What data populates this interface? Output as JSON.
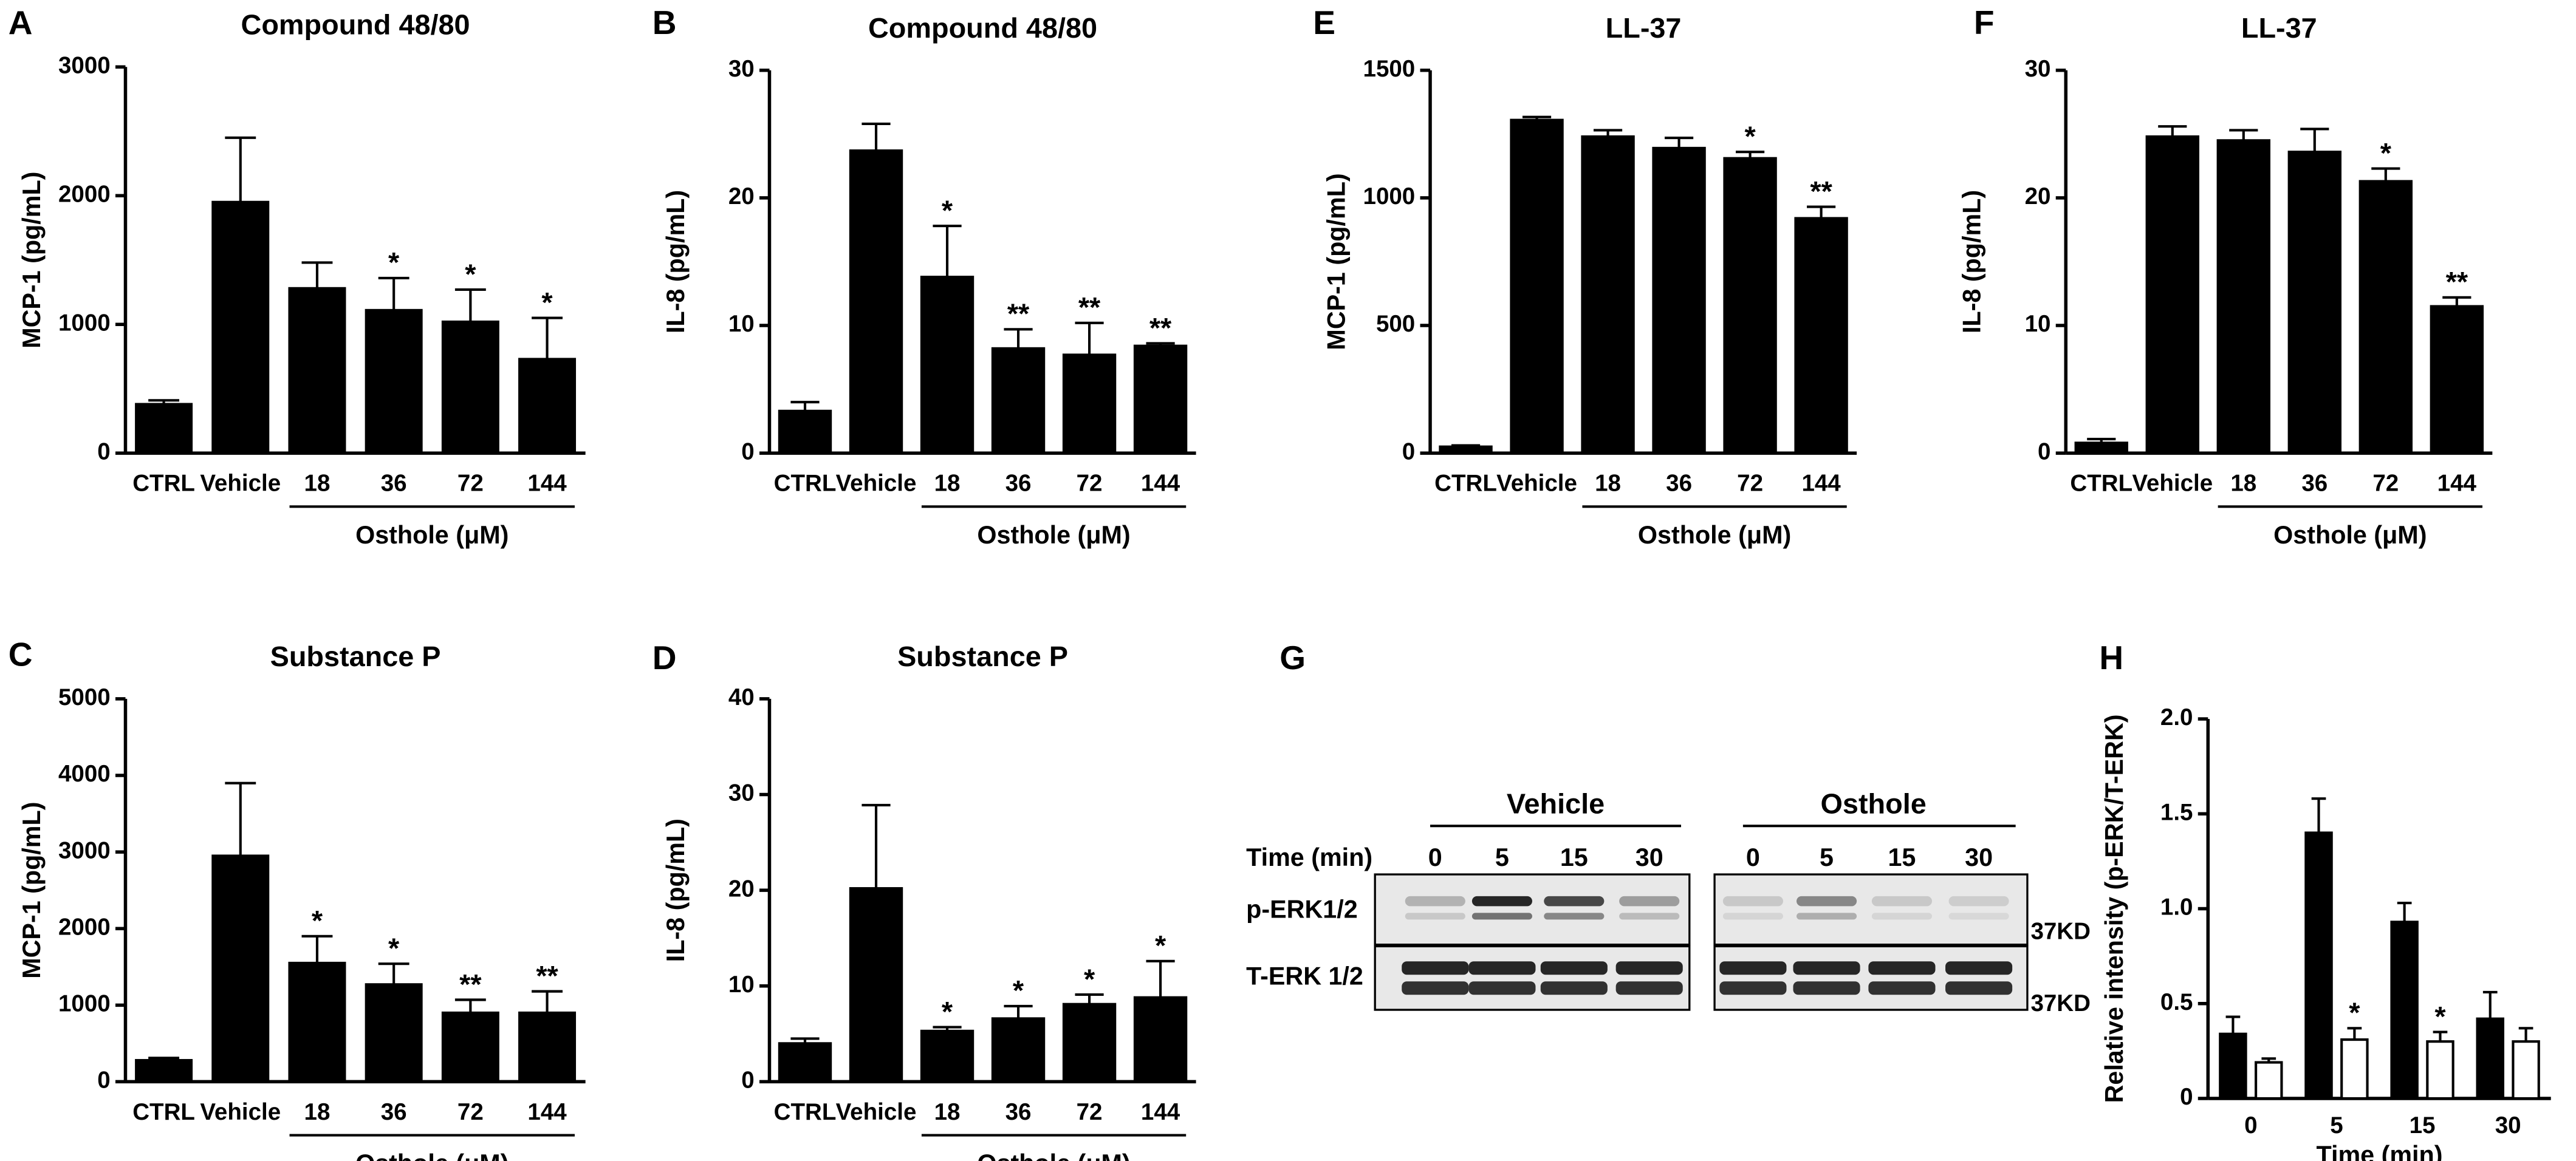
{
  "chart_data": [
    {
      "type": "bar",
      "panel": "A",
      "title": "Compound 48/80",
      "ylabel": "MCP-1 (pg/mL)",
      "categories": [
        "CTRL",
        "Vehicle",
        "18",
        "36",
        "72",
        "144"
      ],
      "values": [
        380,
        1950,
        1280,
        1110,
        1020,
        730
      ],
      "errors": [
        30,
        500,
        200,
        250,
        250,
        320
      ],
      "annotations": [
        null,
        null,
        null,
        "*",
        "*",
        "*"
      ],
      "x_group_label": "Osthole (μM)",
      "color": "#000000",
      "ylim": [
        0,
        3000
      ],
      "yticks": [
        0,
        1000,
        2000,
        3000
      ]
    },
    {
      "type": "bar",
      "panel": "B",
      "title": "Compound 48/80",
      "ylabel": "IL-8 (pg/mL)",
      "categories": [
        "CTRL",
        "Vehicle",
        "18",
        "36",
        "72",
        "144"
      ],
      "values": [
        3.3,
        23.7,
        13.8,
        8.2,
        7.7,
        8.4
      ],
      "errors": [
        0.7,
        2.1,
        4,
        1.5,
        2.5,
        0.2
      ],
      "annotations": [
        null,
        null,
        "*",
        "**",
        "**",
        "**"
      ],
      "x_group_label": "Osthole (μM)",
      "color": "#000000",
      "ylim": [
        0,
        30
      ],
      "yticks": [
        0,
        10,
        20,
        30
      ]
    },
    {
      "type": "bar",
      "panel": "C",
      "title": "Substance P",
      "ylabel": "MCP-1 (pg/mL)",
      "categories": [
        "CTRL",
        "Vehicle",
        "18",
        "36",
        "72",
        "144"
      ],
      "values": [
        280,
        2950,
        1550,
        1270,
        900,
        900
      ],
      "errors": [
        30,
        950,
        350,
        270,
        170,
        280
      ],
      "annotations": [
        null,
        null,
        "*",
        "*",
        "**",
        "**"
      ],
      "x_group_label": "Osthole (μM)",
      "color": "#000000",
      "ylim": [
        0,
        5000
      ],
      "yticks": [
        0,
        1000,
        2000,
        3000,
        4000,
        5000
      ]
    },
    {
      "type": "bar",
      "panel": "D",
      "title": "Substance P",
      "ylabel": "IL-8 (pg/mL)",
      "categories": [
        "CTRL",
        "Vehicle",
        "18",
        "36",
        "72",
        "144"
      ],
      "values": [
        4,
        20.2,
        5.3,
        6.6,
        8.1,
        8.8
      ],
      "errors": [
        0.5,
        8.7,
        0.4,
        1.3,
        1,
        3.8
      ],
      "annotations": [
        null,
        null,
        "*",
        "*",
        "*",
        "*"
      ],
      "x_group_label": "Osthole (μM)",
      "color": "#000000",
      "ylim": [
        0,
        40
      ],
      "yticks": [
        0,
        10,
        20,
        30,
        40
      ]
    },
    {
      "type": "bar",
      "panel": "E",
      "title": "LL-37",
      "ylabel": "MCP-1 (pg/mL)",
      "categories": [
        "CTRL",
        "Vehicle",
        "18",
        "36",
        "72",
        "144"
      ],
      "values": [
        25,
        1305,
        1240,
        1195,
        1155,
        920
      ],
      "errors": [
        5,
        12,
        25,
        40,
        25,
        45
      ],
      "annotations": [
        null,
        null,
        null,
        null,
        "*",
        "**"
      ],
      "x_group_label": "Osthole (μM)",
      "color": "#000000",
      "ylim": [
        0,
        1500
      ],
      "yticks": [
        0,
        500,
        1000,
        1500
      ]
    },
    {
      "type": "bar",
      "panel": "F",
      "title": "LL-37",
      "ylabel": "IL-8 (pg/mL)",
      "categories": [
        "CTRL",
        "Vehicle",
        "18",
        "36",
        "72",
        "144"
      ],
      "values": [
        0.8,
        24.8,
        24.5,
        23.6,
        21.3,
        11.5
      ],
      "errors": [
        0.3,
        0.8,
        0.8,
        1.8,
        1,
        0.7
      ],
      "annotations": [
        null,
        null,
        null,
        null,
        "*",
        "**"
      ],
      "x_group_label": "Osthole (μM)",
      "color": "#000000",
      "ylim": [
        0,
        30
      ],
      "yticks": [
        0,
        10,
        20,
        30
      ]
    },
    {
      "type": "grouped_bar",
      "panel": "H",
      "ylabel": "Relative intensity (p-ERK/T-ERK)",
      "xlabel": "Time (min)",
      "categories": [
        "0",
        "5",
        "15",
        "30"
      ],
      "series": [
        {
          "color": "#000000",
          "values": [
            0.34,
            1.4,
            0.93,
            0.42
          ],
          "errors": [
            0.09,
            0.18,
            0.1,
            0.14
          ],
          "annotations": [
            null,
            null,
            null,
            null
          ]
        },
        {
          "color": "#ffffff",
          "values": [
            0.19,
            0.31,
            0.3,
            0.3
          ],
          "errors": [
            0.02,
            0.06,
            0.05,
            0.07
          ],
          "annotations": [
            null,
            "*",
            "*",
            null
          ]
        }
      ],
      "ylim": [
        0,
        2
      ],
      "yticks": [
        0,
        0.5,
        {
          "value": 1,
          "label": "1.0"
        },
        1.5,
        {
          "value": 2,
          "label": "2.0"
        }
      ]
    }
  ],
  "blot": {
    "panel": "G",
    "groups": [
      "Vehicle",
      "Osthole"
    ],
    "time_label": "Time (min)",
    "lanes": [
      "0",
      "5",
      "15",
      "30"
    ],
    "rows": [
      "p-ERK1/2",
      "T-ERK 1/2"
    ],
    "marker": "37KD"
  }
}
